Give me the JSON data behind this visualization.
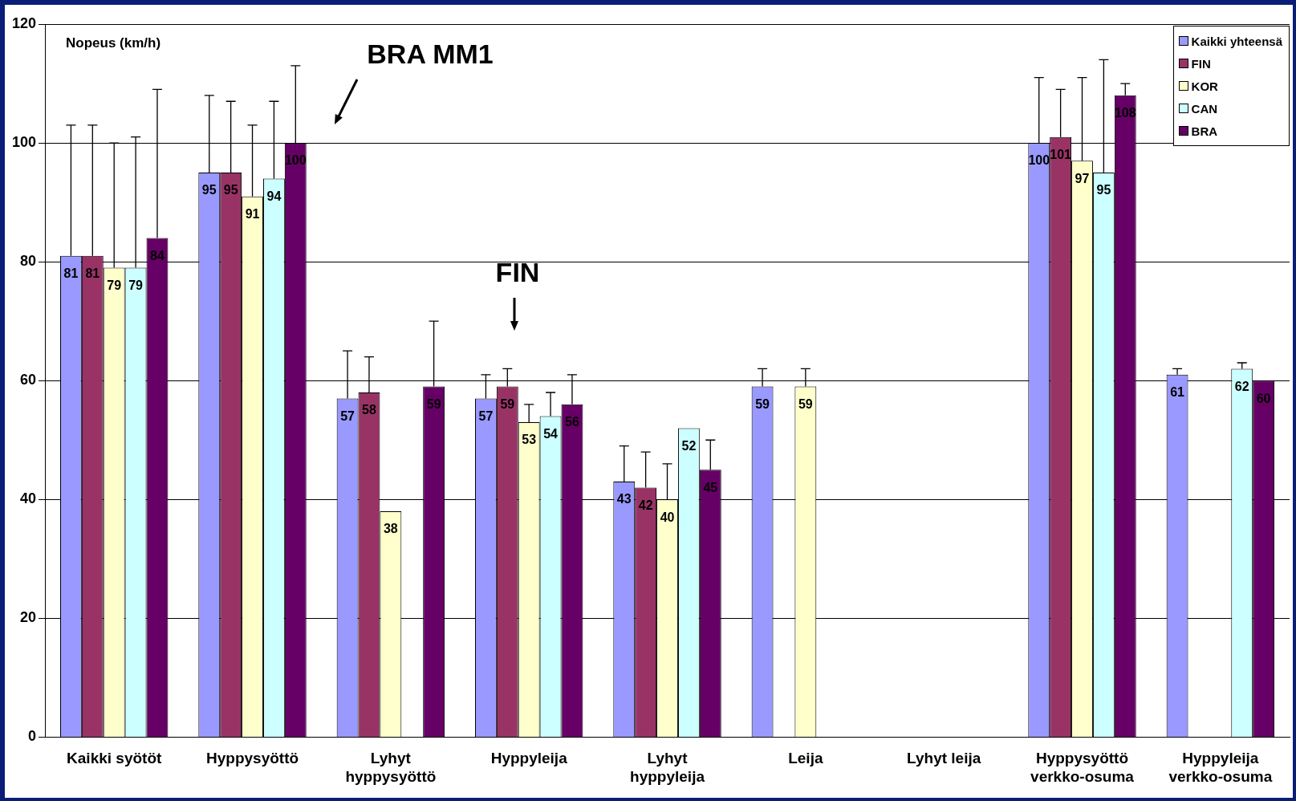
{
  "chart_data": {
    "type": "bar",
    "ylabel": "Nopeus (km/h)",
    "categories": [
      "Kaikki syötöt",
      "Hyppysyöttö",
      "Lyhyt hyppysyöttö",
      "Hyppyleija",
      "Lyhyt hyppyleija",
      "Leija",
      "Lyhyt leija",
      "Hyppysyöttö verkko-osuma",
      "Hyppyleija verkko-osuma"
    ],
    "series": [
      {
        "name": "Kaikki yhteensä",
        "color": "#9999ff",
        "values": [
          81,
          95,
          57,
          57,
          43,
          59,
          null,
          100,
          61
        ],
        "errors": [
          [
            81,
            103
          ],
          [
            95,
            108
          ],
          [
            57,
            65
          ],
          [
            57,
            61
          ],
          [
            43,
            49
          ],
          [
            59,
            62
          ],
          null,
          [
            100,
            111
          ],
          [
            61,
            62
          ]
        ]
      },
      {
        "name": "FIN",
        "color": "#993366",
        "values": [
          81,
          95,
          58,
          59,
          42,
          null,
          null,
          101,
          null
        ],
        "errors": [
          [
            81,
            103
          ],
          [
            95,
            107
          ],
          [
            58,
            64
          ],
          [
            59,
            62
          ],
          [
            42,
            48
          ],
          null,
          null,
          [
            101,
            109
          ],
          null
        ]
      },
      {
        "name": "KOR",
        "color": "#ffffcc",
        "values": [
          79,
          91,
          38,
          53,
          40,
          59,
          null,
          97,
          null
        ],
        "errors": [
          [
            79,
            100
          ],
          [
            91,
            103
          ],
          null,
          [
            53,
            56
          ],
          [
            40,
            46
          ],
          [
            59,
            62
          ],
          null,
          [
            97,
            111
          ],
          null
        ]
      },
      {
        "name": "CAN",
        "color": "#ccffff",
        "values": [
          79,
          94,
          null,
          54,
          52,
          null,
          null,
          95,
          62
        ],
        "errors": [
          [
            79,
            101
          ],
          [
            94,
            107
          ],
          null,
          [
            54,
            58
          ],
          null,
          null,
          null,
          [
            95,
            114
          ],
          [
            62,
            63
          ]
        ]
      },
      {
        "name": "BRA",
        "color": "#660066",
        "values": [
          84,
          100,
          59,
          56,
          45,
          null,
          null,
          108,
          60
        ],
        "errors": [
          [
            84,
            109
          ],
          [
            100,
            113
          ],
          [
            59,
            70
          ],
          [
            56,
            61
          ],
          [
            45,
            50
          ],
          null,
          null,
          [
            108,
            110
          ],
          null
        ]
      }
    ],
    "ylim": [
      0,
      120
    ],
    "yticks": [
      0,
      20,
      40,
      60,
      80,
      100,
      120
    ],
    "grid": "y",
    "legend": "top right",
    "data_labels": true,
    "annotations": [
      "BRA MM1",
      "FIN"
    ]
  }
}
